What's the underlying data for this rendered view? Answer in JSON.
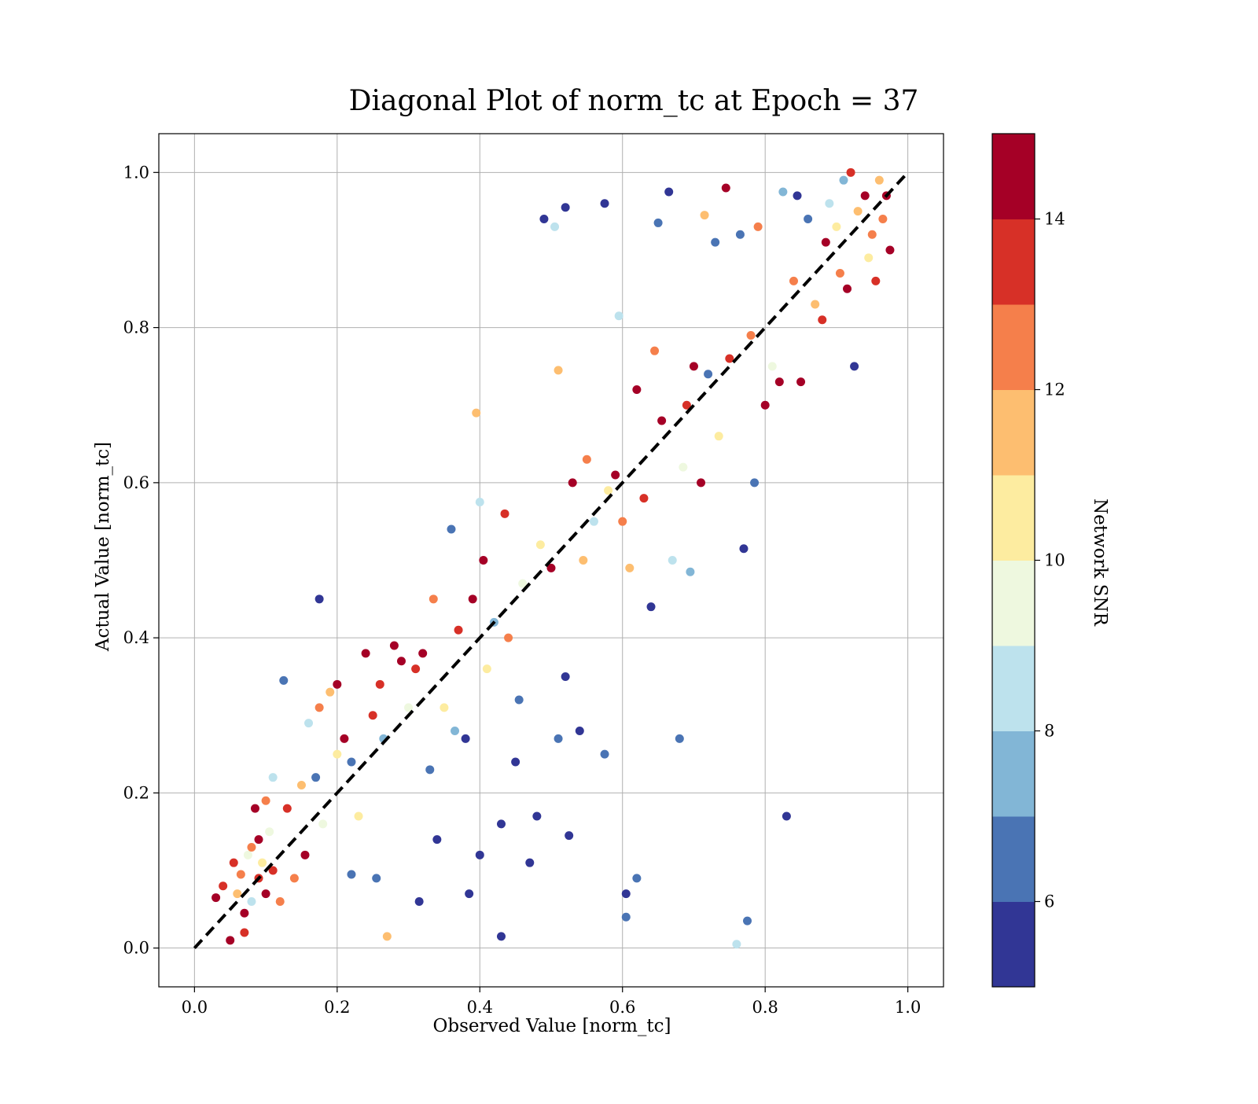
{
  "chart_data": {
    "type": "scatter",
    "title": "Diagonal Plot of norm_tc at Epoch = 37",
    "xlabel": "Observed Value [norm_tc]",
    "ylabel": "Actual Value [norm_tc]",
    "xlim": [
      -0.05,
      1.05
    ],
    "ylim": [
      -0.05,
      1.05
    ],
    "x_ticks": [
      0.0,
      0.2,
      0.4,
      0.6,
      0.8,
      1.0
    ],
    "y_ticks": [
      0.0,
      0.2,
      0.4,
      0.6,
      0.8,
      1.0
    ],
    "x_tick_labels": [
      "0.0",
      "0.2",
      "0.4",
      "0.6",
      "0.8",
      "1.0"
    ],
    "y_tick_labels": [
      "0.0",
      "0.2",
      "0.4",
      "0.6",
      "0.8",
      "1.0"
    ],
    "grid": true,
    "reference_line": {
      "style": "dashed",
      "color": "#000000",
      "from": [
        0,
        0
      ],
      "to": [
        1,
        1
      ]
    },
    "colorbar": {
      "label": "Network SNR",
      "range": [
        5,
        15
      ],
      "ticks": [
        6,
        8,
        10,
        12,
        14
      ],
      "tick_labels": [
        "6",
        "8",
        "10",
        "12",
        "14"
      ],
      "colors": [
        "#313695",
        "#4a74b4",
        "#82b6d6",
        "#bde2ed",
        "#eef8df",
        "#fdeca0",
        "#fdbe70",
        "#f57f4b",
        "#d73027",
        "#a50026"
      ]
    },
    "points": [
      [
        0.03,
        0.065,
        14
      ],
      [
        0.04,
        0.08,
        13
      ],
      [
        0.05,
        0.01,
        14
      ],
      [
        0.055,
        0.11,
        13
      ],
      [
        0.06,
        0.07,
        11
      ],
      [
        0.065,
        0.095,
        12
      ],
      [
        0.07,
        0.045,
        14
      ],
      [
        0.07,
        0.02,
        13
      ],
      [
        0.075,
        0.12,
        9
      ],
      [
        0.08,
        0.06,
        8
      ],
      [
        0.08,
        0.13,
        12
      ],
      [
        0.085,
        0.18,
        14
      ],
      [
        0.09,
        0.09,
        13
      ],
      [
        0.09,
        0.14,
        14
      ],
      [
        0.095,
        0.11,
        10
      ],
      [
        0.1,
        0.07,
        14
      ],
      [
        0.1,
        0.19,
        12
      ],
      [
        0.105,
        0.15,
        9
      ],
      [
        0.11,
        0.1,
        13
      ],
      [
        0.11,
        0.22,
        8
      ],
      [
        0.12,
        0.06,
        12
      ],
      [
        0.125,
        0.345,
        6
      ],
      [
        0.13,
        0.18,
        13
      ],
      [
        0.14,
        0.09,
        12
      ],
      [
        0.15,
        0.21,
        11
      ],
      [
        0.155,
        0.12,
        14
      ],
      [
        0.16,
        0.29,
        8
      ],
      [
        0.17,
        0.22,
        6
      ],
      [
        0.175,
        0.31,
        12
      ],
      [
        0.175,
        0.45,
        5
      ],
      [
        0.18,
        0.16,
        9
      ],
      [
        0.19,
        0.33,
        11
      ],
      [
        0.2,
        0.34,
        14
      ],
      [
        0.2,
        0.25,
        10
      ],
      [
        0.21,
        0.27,
        14
      ],
      [
        0.22,
        0.24,
        6
      ],
      [
        0.22,
        0.095,
        6
      ],
      [
        0.23,
        0.17,
        10
      ],
      [
        0.24,
        0.38,
        14
      ],
      [
        0.25,
        0.3,
        13
      ],
      [
        0.255,
        0.09,
        6
      ],
      [
        0.26,
        0.34,
        13
      ],
      [
        0.265,
        0.27,
        7
      ],
      [
        0.27,
        0.015,
        11
      ],
      [
        0.28,
        0.39,
        14
      ],
      [
        0.29,
        0.37,
        14
      ],
      [
        0.3,
        0.31,
        9
      ],
      [
        0.31,
        0.36,
        13
      ],
      [
        0.315,
        0.06,
        5
      ],
      [
        0.32,
        0.38,
        14
      ],
      [
        0.33,
        0.23,
        6
      ],
      [
        0.335,
        0.45,
        12
      ],
      [
        0.34,
        0.14,
        5
      ],
      [
        0.35,
        0.31,
        10
      ],
      [
        0.36,
        0.54,
        6
      ],
      [
        0.365,
        0.28,
        7
      ],
      [
        0.37,
        0.41,
        13
      ],
      [
        0.38,
        0.27,
        5
      ],
      [
        0.385,
        0.07,
        5
      ],
      [
        0.39,
        0.45,
        14
      ],
      [
        0.395,
        0.69,
        11
      ],
      [
        0.4,
        0.12,
        5
      ],
      [
        0.4,
        0.575,
        8
      ],
      [
        0.405,
        0.5,
        14
      ],
      [
        0.41,
        0.36,
        10
      ],
      [
        0.42,
        0.42,
        7
      ],
      [
        0.43,
        0.015,
        5
      ],
      [
        0.43,
        0.16,
        5
      ],
      [
        0.435,
        0.56,
        13
      ],
      [
        0.44,
        0.4,
        12
      ],
      [
        0.45,
        0.24,
        5
      ],
      [
        0.455,
        0.32,
        6
      ],
      [
        0.46,
        0.47,
        9
      ],
      [
        0.47,
        0.11,
        5
      ],
      [
        0.48,
        0.17,
        5
      ],
      [
        0.485,
        0.52,
        10
      ],
      [
        0.49,
        0.94,
        5
      ],
      [
        0.5,
        0.49,
        14
      ],
      [
        0.505,
        0.93,
        8
      ],
      [
        0.51,
        0.27,
        6
      ],
      [
        0.51,
        0.745,
        11
      ],
      [
        0.52,
        0.955,
        5
      ],
      [
        0.52,
        0.35,
        5
      ],
      [
        0.525,
        0.145,
        5
      ],
      [
        0.53,
        0.6,
        14
      ],
      [
        0.54,
        0.28,
        5
      ],
      [
        0.545,
        0.5,
        11
      ],
      [
        0.55,
        0.63,
        12
      ],
      [
        0.56,
        0.55,
        8
      ],
      [
        0.575,
        0.96,
        5
      ],
      [
        0.575,
        0.25,
        6
      ],
      [
        0.58,
        0.59,
        10
      ],
      [
        0.59,
        0.61,
        14
      ],
      [
        0.595,
        0.815,
        8
      ],
      [
        0.6,
        0.55,
        12
      ],
      [
        0.605,
        0.04,
        6
      ],
      [
        0.605,
        0.07,
        5
      ],
      [
        0.61,
        0.49,
        11
      ],
      [
        0.62,
        0.72,
        14
      ],
      [
        0.62,
        0.09,
        6
      ],
      [
        0.63,
        0.58,
        13
      ],
      [
        0.64,
        0.44,
        5
      ],
      [
        0.645,
        0.77,
        12
      ],
      [
        0.65,
        0.935,
        6
      ],
      [
        0.655,
        0.68,
        14
      ],
      [
        0.665,
        0.975,
        5
      ],
      [
        0.67,
        0.5,
        8
      ],
      [
        0.68,
        0.27,
        6
      ],
      [
        0.685,
        0.62,
        9
      ],
      [
        0.69,
        0.7,
        13
      ],
      [
        0.695,
        0.485,
        7
      ],
      [
        0.7,
        0.75,
        14
      ],
      [
        0.71,
        0.6,
        14
      ],
      [
        0.715,
        0.945,
        11
      ],
      [
        0.72,
        0.74,
        6
      ],
      [
        0.73,
        0.91,
        6
      ],
      [
        0.735,
        0.66,
        10
      ],
      [
        0.745,
        0.98,
        14
      ],
      [
        0.75,
        0.76,
        13
      ],
      [
        0.76,
        0.005,
        8
      ],
      [
        0.765,
        0.92,
        6
      ],
      [
        0.77,
        0.515,
        5
      ],
      [
        0.775,
        0.035,
        6
      ],
      [
        0.78,
        0.79,
        12
      ],
      [
        0.785,
        0.6,
        6
      ],
      [
        0.79,
        0.93,
        12
      ],
      [
        0.8,
        0.7,
        14
      ],
      [
        0.81,
        0.75,
        9
      ],
      [
        0.82,
        0.73,
        14
      ],
      [
        0.825,
        0.975,
        7
      ],
      [
        0.83,
        0.17,
        5
      ],
      [
        0.84,
        0.86,
        12
      ],
      [
        0.845,
        0.97,
        5
      ],
      [
        0.85,
        0.73,
        14
      ],
      [
        0.86,
        0.94,
        6
      ],
      [
        0.87,
        0.83,
        11
      ],
      [
        0.88,
        0.81,
        13
      ],
      [
        0.885,
        0.91,
        14
      ],
      [
        0.89,
        0.96,
        8
      ],
      [
        0.9,
        0.93,
        10
      ],
      [
        0.905,
        0.87,
        12
      ],
      [
        0.91,
        0.99,
        7
      ],
      [
        0.915,
        0.85,
        14
      ],
      [
        0.92,
        1.0,
        13
      ],
      [
        0.925,
        0.75,
        5
      ],
      [
        0.93,
        0.95,
        11
      ],
      [
        0.94,
        0.97,
        14
      ],
      [
        0.945,
        0.89,
        10
      ],
      [
        0.95,
        0.92,
        12
      ],
      [
        0.955,
        0.86,
        13
      ],
      [
        0.96,
        0.99,
        11
      ],
      [
        0.965,
        0.94,
        12
      ],
      [
        0.97,
        0.97,
        14
      ],
      [
        0.975,
        0.9,
        14
      ]
    ]
  }
}
